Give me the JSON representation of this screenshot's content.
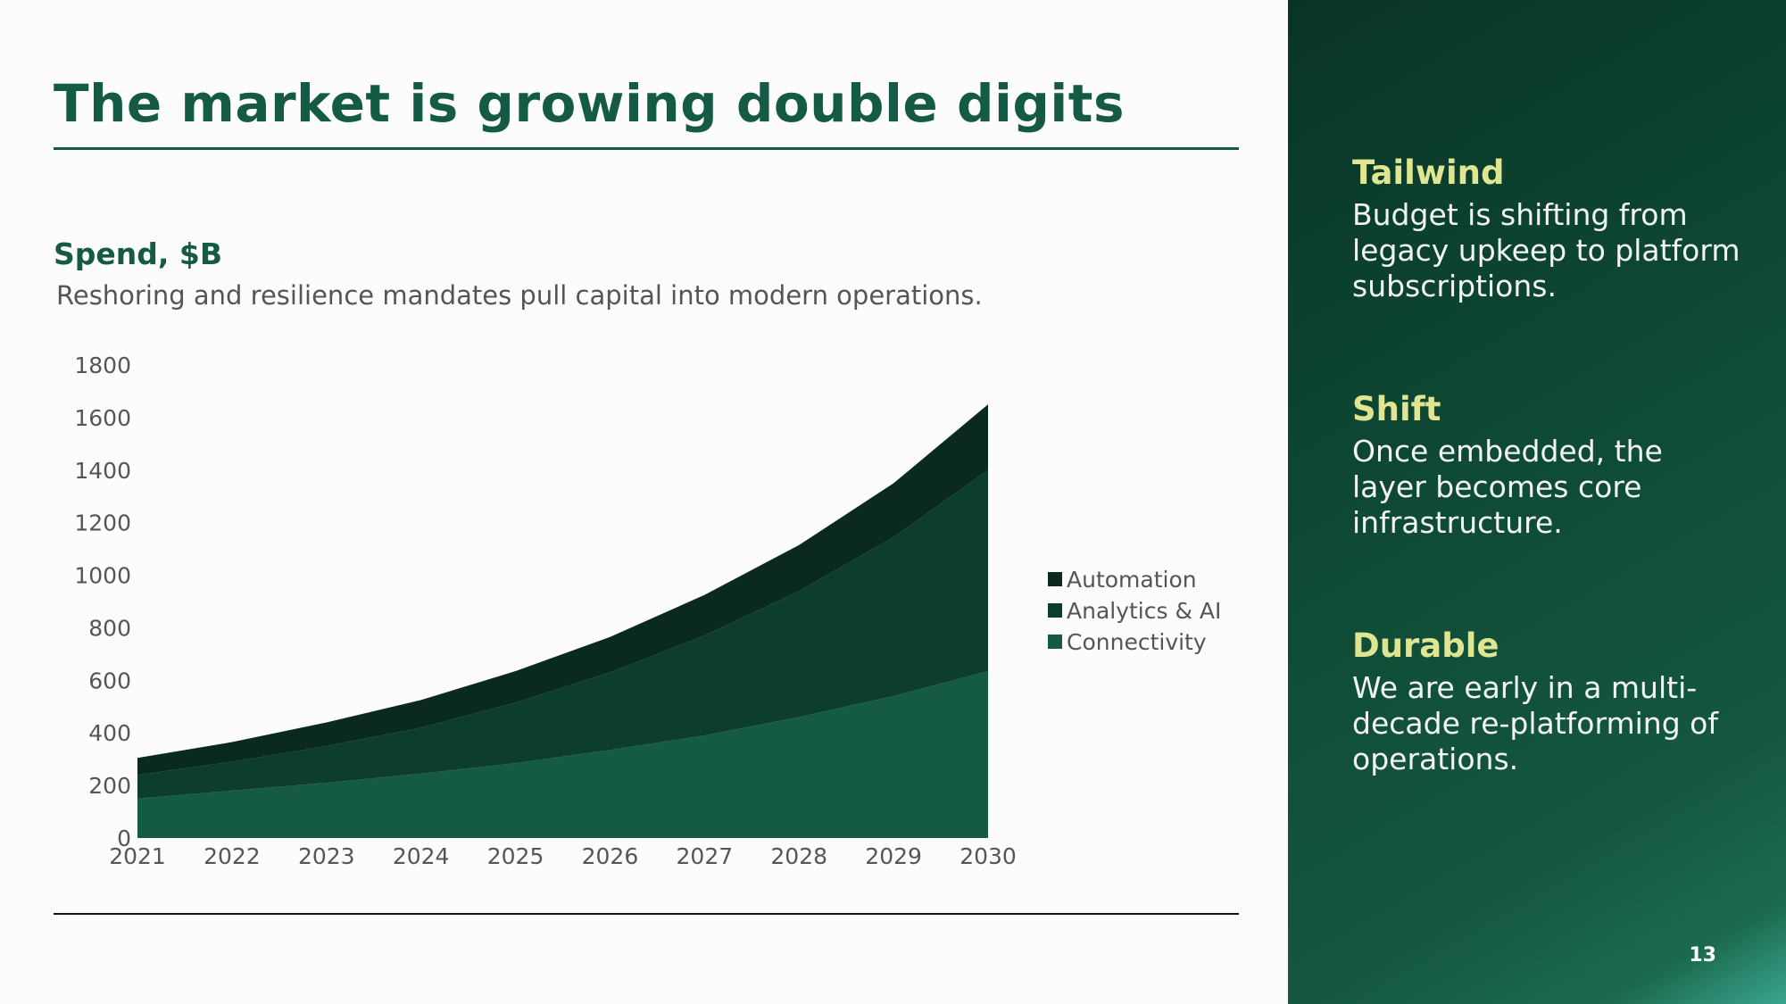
{
  "slide": {
    "title": "The market is growing double digits",
    "subhead": "Spend, $B",
    "caption": "Reshoring and resilience mandates pull capital into modern operations.",
    "page_number": "13"
  },
  "sidebar": {
    "points": [
      {
        "title": "Tailwind",
        "body": "Budget is shifting from legacy upkeep to platform subscriptions."
      },
      {
        "title": "Shift",
        "body": "Once embedded, the layer becomes core infrastructure."
      },
      {
        "title": "Durable",
        "body": "We are early in a multi-decade re-platforming of operations."
      }
    ]
  },
  "colors": {
    "accent": "#145a45",
    "sidebar_title": "#e0e591",
    "connectivity": "#145a45",
    "analytics": "#0c3d2d",
    "automation": "#0a2a1f"
  },
  "chart_data": {
    "type": "area",
    "stacked": true,
    "title": "Spend, $B",
    "x": [
      "2021",
      "2022",
      "2023",
      "2024",
      "2025",
      "2026",
      "2027",
      "2028",
      "2029",
      "2030"
    ],
    "ylim": [
      0,
      1800
    ],
    "yticks": [
      0,
      200,
      400,
      600,
      800,
      1000,
      1200,
      1400,
      1600,
      1800
    ],
    "grid": false,
    "legend_position": "right",
    "series": [
      {
        "name": "Connectivity",
        "color": "#145a45",
        "values": [
          150,
          180,
          210,
          245,
          285,
          335,
          390,
          460,
          540,
          635
        ]
      },
      {
        "name": "Analytics & AI",
        "color": "#0c3d2d",
        "values": [
          90,
          110,
          140,
          175,
          230,
          295,
          380,
          480,
          605,
          765
        ]
      },
      {
        "name": "Automation",
        "color": "#0a2a1f",
        "values": [
          65,
          75,
          90,
          105,
          120,
          135,
          155,
          175,
          205,
          250
        ]
      }
    ]
  }
}
